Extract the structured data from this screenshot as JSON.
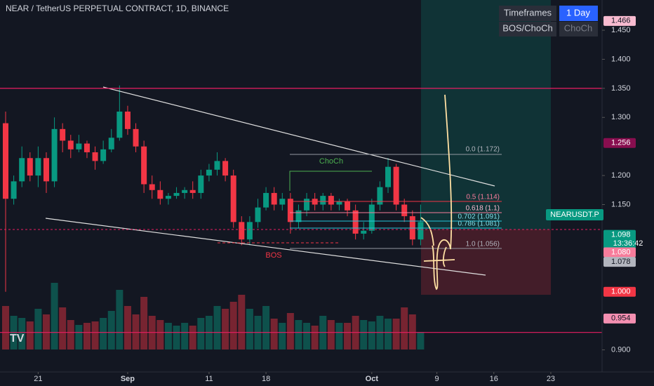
{
  "chart_data": {
    "type": "candlestick",
    "title": "NEAR / TetherUS PERPETUAL CONTRACT, 1D, BINANCE",
    "open": [
      1.29,
      1.16,
      1.19,
      1.23,
      1.2,
      1.23,
      1.19,
      1.28,
      1.26,
      1.245,
      1.255,
      1.24,
      1.225,
      1.245,
      1.265,
      1.31,
      1.28,
      1.25,
      1.185,
      1.175,
      1.16,
      1.165,
      1.17,
      1.175,
      1.17,
      1.2,
      1.21,
      1.225,
      1.2,
      1.12,
      1.09,
      1.12,
      1.145,
      1.17,
      1.15,
      1.16,
      1.12,
      1.14,
      1.16,
      1.15,
      1.165,
      1.15,
      1.155,
      1.14,
      1.1,
      1.105,
      1.15,
      1.18,
      1.215,
      1.15,
      1.13,
      1.09
    ],
    "high": [
      1.31,
      1.2,
      1.25,
      1.24,
      1.25,
      1.24,
      1.3,
      1.29,
      1.27,
      1.27,
      1.26,
      1.25,
      1.26,
      1.28,
      1.355,
      1.32,
      1.29,
      1.26,
      1.2,
      1.19,
      1.17,
      1.18,
      1.18,
      1.19,
      1.21,
      1.22,
      1.24,
      1.23,
      1.21,
      1.13,
      1.13,
      1.16,
      1.18,
      1.18,
      1.17,
      1.17,
      1.15,
      1.17,
      1.17,
      1.17,
      1.17,
      1.16,
      1.16,
      1.15,
      1.12,
      1.16,
      1.19,
      1.23,
      1.22,
      1.16,
      1.14,
      1.15
    ],
    "low": [
      1.0,
      1.15,
      1.18,
      1.19,
      1.18,
      1.17,
      1.18,
      1.24,
      1.23,
      1.24,
      1.23,
      1.21,
      1.22,
      1.24,
      1.26,
      1.27,
      1.24,
      1.17,
      1.16,
      1.15,
      1.15,
      1.16,
      1.16,
      1.16,
      1.16,
      1.19,
      1.2,
      1.19,
      1.11,
      1.08,
      1.08,
      1.11,
      1.14,
      1.14,
      1.14,
      1.1,
      1.11,
      1.13,
      1.14,
      1.14,
      1.14,
      1.14,
      1.13,
      1.09,
      1.09,
      1.1,
      1.14,
      1.17,
      1.14,
      1.12,
      1.08,
      1.08
    ],
    "close": [
      1.16,
      1.19,
      1.23,
      1.2,
      1.23,
      1.19,
      1.28,
      1.26,
      1.245,
      1.255,
      1.24,
      1.225,
      1.245,
      1.265,
      1.31,
      1.28,
      1.25,
      1.185,
      1.175,
      1.16,
      1.165,
      1.17,
      1.175,
      1.17,
      1.2,
      1.21,
      1.225,
      1.2,
      1.12,
      1.09,
      1.12,
      1.145,
      1.17,
      1.15,
      1.16,
      1.12,
      1.14,
      1.16,
      1.15,
      1.165,
      1.15,
      1.155,
      1.14,
      1.1,
      1.105,
      1.15,
      1.18,
      1.215,
      1.15,
      1.13,
      1.09,
      1.12
    ],
    "volume": [
      62,
      48,
      45,
      40,
      58,
      50,
      95,
      60,
      42,
      35,
      38,
      40,
      45,
      55,
      85,
      62,
      50,
      75,
      48,
      42,
      38,
      34,
      38,
      34,
      45,
      48,
      62,
      58,
      68,
      78,
      58,
      48,
      62,
      44,
      38,
      52,
      42,
      38,
      34,
      48,
      42,
      38,
      38,
      48,
      42,
      40,
      48,
      44,
      44,
      60,
      50,
      25
    ],
    "up_color": "#089981",
    "down_color": "#f23645",
    "xlim": [
      -0.69,
      73.3
    ],
    "xticks": [
      {
        "value": 4,
        "label": "21"
      },
      {
        "value": 15,
        "label": "Sep"
      },
      {
        "value": 25,
        "label": "11"
      },
      {
        "value": 32,
        "label": "18"
      },
      {
        "value": 45,
        "label": "Oct"
      },
      {
        "value": 53,
        "label": "9"
      },
      {
        "value": 60,
        "label": "16"
      },
      {
        "value": 67,
        "label": "23"
      }
    ],
    "ylim": [
      0.862,
      1.502
    ],
    "yticks": [
      {
        "value": 1.45,
        "label": "1.450"
      },
      {
        "value": 1.4,
        "label": "1.400"
      },
      {
        "value": 1.35,
        "label": "1.350"
      },
      {
        "value": 1.3,
        "label": "1.300"
      },
      {
        "value": 1.2,
        "label": "1.200"
      },
      {
        "value": 1.15,
        "label": "1.150"
      },
      {
        "value": 0.9,
        "label": "0.900"
      }
    ],
    "hlines": [
      1.35,
      0.93
    ],
    "price_labels": [
      {
        "value": 1.466,
        "label": "1.466",
        "color": "#f8bbd0"
      },
      {
        "value": 1.256,
        "label": "1.256",
        "color": "#880e4f"
      },
      {
        "value": 1.098,
        "label": "1.098",
        "color": "#089981"
      },
      {
        "value": 1.08,
        "label": "1.080",
        "color": "#f77c9b"
      },
      {
        "value": 1.078,
        "label": "1.078",
        "color": "#b2b5be"
      },
      {
        "value": 1.0,
        "label": "1.000",
        "color": "#f23645"
      },
      {
        "value": 0.954,
        "label": "0.954",
        "color": "#f48fb1"
      }
    ]
  },
  "overlay": {
    "timeframes": "Timeframes",
    "timeframe_value": "1 Day",
    "bos_choch": "BOS/ChoCh",
    "bos_choch_value": "ChoCh",
    "choch": "ChoCh",
    "bos": "BOS",
    "symbol": "NEARUSDT.P",
    "countdown": "13:36:42",
    "fib": [
      "0.0 (1.172)",
      "0.5 (1.114)",
      "0.618 (1.1)",
      "0.702 (1.091)",
      "0.786 (1.081)",
      "1.0 (1.056)"
    ]
  }
}
